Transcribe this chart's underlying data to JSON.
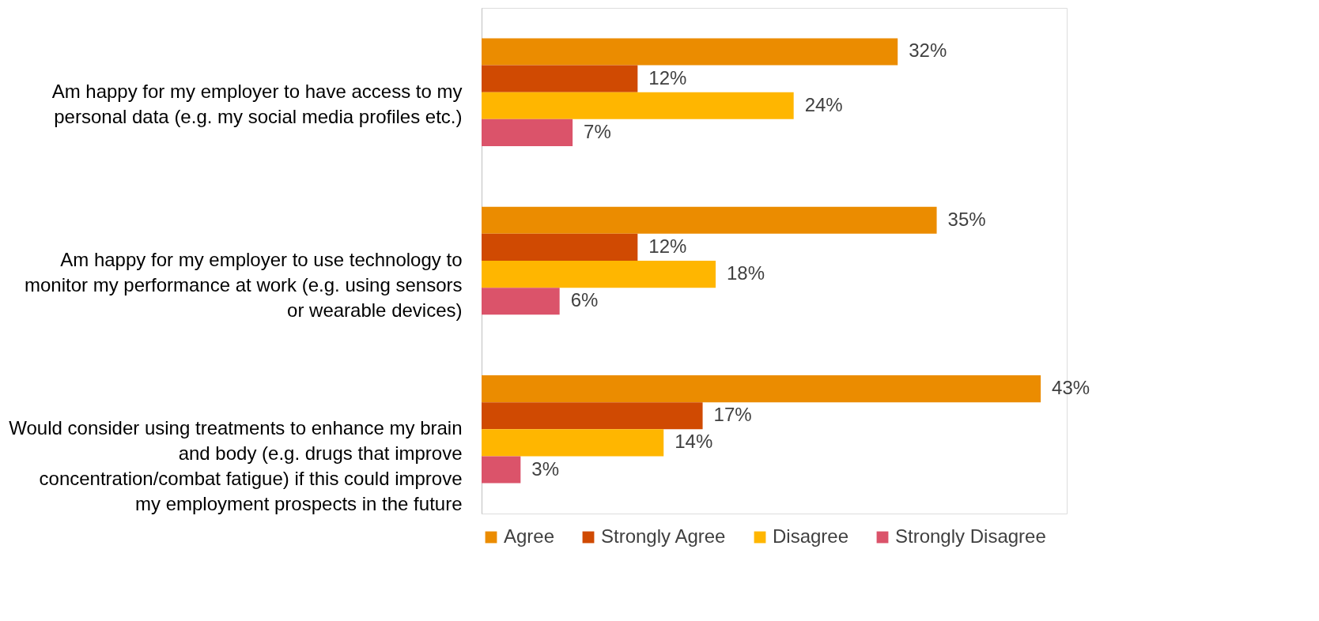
{
  "chart_data": {
    "type": "bar",
    "orientation": "horizontal",
    "categories": [
      "Am happy for my employer to have access to my personal data (e.g. my social media profiles etc.)",
      "Am happy for my employer to use technology to monitor my performance at work (e.g. using sensors or wearable devices)",
      "Would consider using treatments to enhance my brain and body (e.g. drugs that improve concentration/combat fatigue) if this could improve my employment prospects in the future"
    ],
    "series": [
      {
        "name": "Agree",
        "color": "#eb8c00",
        "values": [
          32,
          35,
          43
        ],
        "value_labels": [
          "32%",
          "35%",
          "43%"
        ]
      },
      {
        "name": "Strongly Agree",
        "color": "#d04a02",
        "values": [
          12,
          12,
          17
        ],
        "value_labels": [
          "12%",
          "12%",
          "17%"
        ]
      },
      {
        "name": "Disagree",
        "color": "#ffb600",
        "values": [
          24,
          18,
          14
        ],
        "value_labels": [
          "24%",
          "18%",
          "14%"
        ]
      },
      {
        "name": "Strongly Disagree",
        "color": "#db536a",
        "values": [
          7,
          6,
          3
        ],
        "value_labels": [
          "7%",
          "6%",
          "3%"
        ]
      }
    ],
    "legend": "bottom",
    "grid": false,
    "tick_labels": "y"
  }
}
